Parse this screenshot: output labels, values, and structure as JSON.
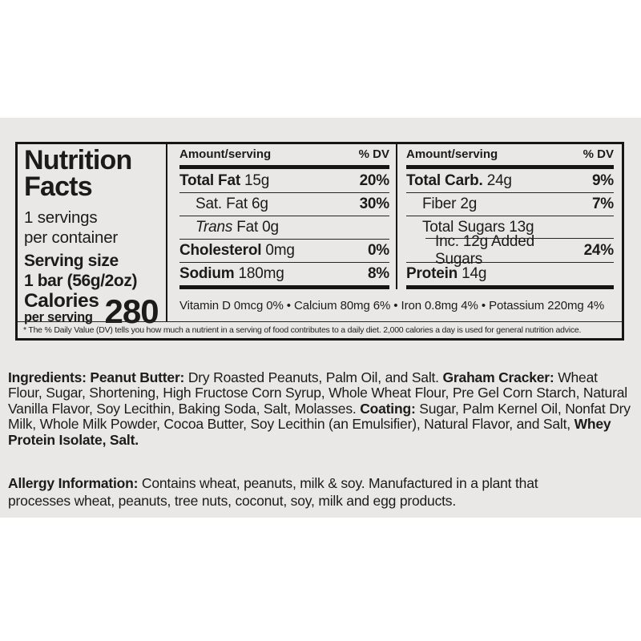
{
  "page": {
    "background": "#ffffff",
    "package_color": "#e9e8e6",
    "ink_color": "#1b1b1b"
  },
  "nutrition_panel": {
    "title_line1": "Nutrition",
    "title_line2": "Facts",
    "servings_line1": "1 servings",
    "servings_line2": "per container",
    "serving_size_label": "Serving size",
    "serving_size_value": "1 bar (56g/2oz)",
    "calories_label": "Calories",
    "calories_sublabel": "per serving",
    "calories_value": "280",
    "mid": {
      "header_amount": "Amount/serving",
      "header_dv": "% DV",
      "rows": [
        {
          "bold": "Total Fat ",
          "rest": "15g",
          "dv": "20%"
        },
        {
          "plain": "Sat. Fat 6g",
          "dv": "30%"
        },
        {
          "italic": "Trans",
          "plain": " Fat 0g",
          "dv": ""
        },
        {
          "bold": "Cholesterol ",
          "rest": "0mg",
          "dv": "0%"
        },
        {
          "bold": "Sodium ",
          "rest": "180mg",
          "dv": "8%"
        }
      ]
    },
    "right": {
      "header_amount": "Amount/serving",
      "header_dv": "% DV",
      "rows": [
        {
          "bold": "Total Carb. ",
          "rest": "24g",
          "dv": "9%"
        },
        {
          "plain": "Fiber 2g",
          "dv": "7%"
        },
        {
          "plain": "Total Sugars 13g",
          "dv": ""
        },
        {
          "plain": "Inc. 12g Added Sugars",
          "dv": "24%"
        },
        {
          "bold": "Protein ",
          "rest": "14g",
          "dv": ""
        }
      ]
    },
    "micronutrients": "Vitamin D 0mcg 0% • Calcium 80mg 6% • Iron 0.8mg 4% • Potassium 220mg 4%",
    "footnote": "* The % Daily Value (DV) tells you how much a nutrient in a serving of food contributes to a daily diet. 2,000 calories a day is used for general nutrition advice."
  },
  "ingredients": {
    "segments": [
      {
        "b": "Ingredients: "
      },
      {
        "b": "Peanut Butter: "
      },
      {
        "t": "Dry Roasted Peanuts, Palm Oil, and Salt. "
      },
      {
        "b": "Graham Cracker: "
      },
      {
        "t": "Wheat Flour, Sugar, Shortening, High Fructose Corn Syrup, Whole Wheat Flour, Pre Gel Corn Starch, Natural Vanilla Flavor, Soy Lecithin, Baking Soda, Salt, Molasses. "
      },
      {
        "b": "Coating: "
      },
      {
        "t": "Sugar, Palm Kernel Oil, Nonfat Dry Milk, Whole Milk Powder, Cocoa Butter, Soy Lecithin (an Emulsifier), Natural Flavor, and Salt, "
      },
      {
        "b": "Whey Protein Isolate, Salt."
      }
    ]
  },
  "allergy": {
    "label": "Allergy Information:",
    "text": " Contains wheat, peanuts, milk & soy. Manufactured in a plant that processes wheat, peanuts, tree nuts, coconut, soy, milk and egg products."
  }
}
